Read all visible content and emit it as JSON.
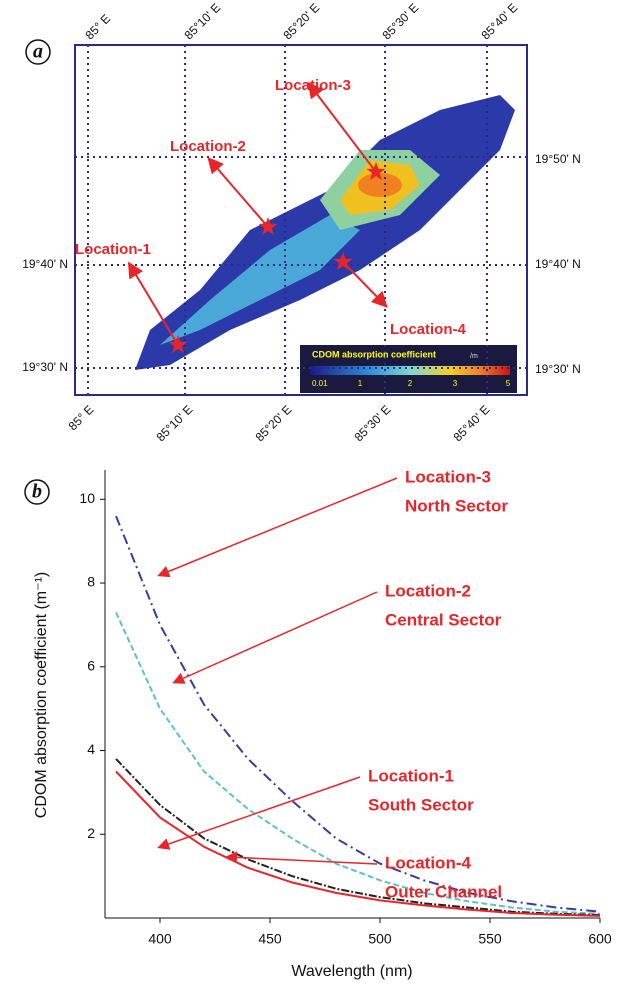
{
  "map": {
    "panel_label": "a",
    "top_ticks": [
      "85° E",
      "85°10' E",
      "85°20' E",
      "85°30' E",
      "85°40' E"
    ],
    "bottom_ticks": [
      "85° E",
      "85°10' E",
      "85°20' E",
      "85°30' E",
      "85°40' E"
    ],
    "left_ticks": [
      "19°40' N",
      "19°30' N"
    ],
    "right_ticks": [
      "19°50' N",
      "19°40' N",
      "19°30' N"
    ],
    "locations": [
      "Location-1",
      "Location-2",
      "Location-3",
      "Location-4"
    ],
    "colorbar": {
      "title": "CDOM absorption coefficient",
      "unit": "/m",
      "ticks": [
        "0.01",
        "1",
        "2",
        "3",
        "5"
      ]
    }
  },
  "chart_data": {
    "type": "line",
    "panel_label": "b",
    "x_label": "Wavelength (nm)",
    "y_label": "CDOM absorption coefficient (m⁻¹)",
    "x": [
      380,
      400,
      420,
      440,
      460,
      480,
      500,
      520,
      540,
      560,
      580,
      600
    ],
    "xlim": [
      375,
      600
    ],
    "xticks": [
      400,
      450,
      500,
      550,
      600
    ],
    "ylim": [
      0,
      10.7
    ],
    "yticks": [
      2,
      4,
      6,
      8,
      10
    ],
    "series": [
      {
        "color": "#3a3aa0",
        "values": [
          9.6,
          7.0,
          5.1,
          3.8,
          2.8,
          1.9,
          1.3,
          0.9,
          0.6,
          0.4,
          0.25,
          0.15
        ]
      },
      {
        "color": "#5bc0d0",
        "values": [
          7.3,
          5.0,
          3.5,
          2.6,
          1.9,
          1.3,
          0.9,
          0.6,
          0.4,
          0.25,
          0.15,
          0.1
        ]
      },
      {
        "color": "#222222",
        "values": [
          3.8,
          2.7,
          1.9,
          1.4,
          1.0,
          0.7,
          0.5,
          0.35,
          0.25,
          0.15,
          0.1,
          0.07
        ]
      },
      {
        "color": "#e8262a",
        "values": [
          3.5,
          2.4,
          1.7,
          1.2,
          0.85,
          0.6,
          0.42,
          0.3,
          0.2,
          0.12,
          0.08,
          0.05
        ]
      }
    ],
    "annotations": [
      {
        "lines": [
          "Location-3",
          "North Sector"
        ]
      },
      {
        "lines": [
          "Location-2",
          "Central Sector"
        ]
      },
      {
        "lines": [
          "Location-1",
          "South Sector"
        ]
      },
      {
        "lines": [
          "Location-4",
          "Outer Channel"
        ]
      }
    ]
  }
}
